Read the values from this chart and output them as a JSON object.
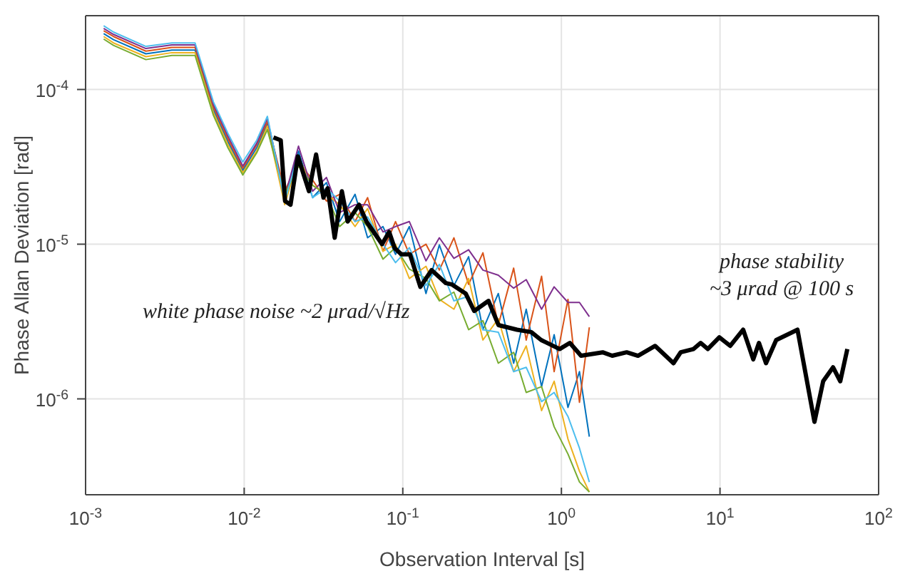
{
  "chart_data": {
    "type": "line",
    "xlabel": "Observation Interval [s]",
    "ylabel": "Phase Allan Deviation [rad]",
    "log": "xy",
    "grid": true,
    "marker": "none",
    "line_style": "solid",
    "xlim": [
      0.001,
      100
    ],
    "ylim": [
      2.4e-07,
      0.0003
    ],
    "xticks": [
      {
        "value": 0.001,
        "label": "10$^{-3}$"
      },
      {
        "value": 0.01,
        "label": "10$^{-2}$"
      },
      {
        "value": 0.1,
        "label": "10$^{-1}$"
      },
      {
        "value": 1,
        "label": "10$^{0}$"
      },
      {
        "value": 10,
        "label": "10$^{1}$"
      },
      {
        "value": 100,
        "label": "10$^{2}$"
      }
    ],
    "yticks": [
      {
        "value": 1e-06,
        "label": "10$^{-6}$"
      },
      {
        "value": 1e-05,
        "label": "10$^{-5}$"
      },
      {
        "value": 0.0001,
        "label": "10$^{-4}$"
      }
    ],
    "x": [
      0.0013,
      0.0015,
      0.0024,
      0.0035,
      0.0049,
      0.0064,
      0.0079,
      0.0098,
      0.012,
      0.014,
      0.018,
      0.022,
      0.027,
      0.033,
      0.04,
      0.05,
      0.06,
      0.075,
      0.09,
      0.11,
      0.14,
      0.17,
      0.21,
      0.26,
      0.32,
      0.4,
      0.5,
      0.6,
      0.75,
      0.9,
      1.1,
      1.3,
      1.5
    ],
    "series": [
      {
        "color": "#0072bd",
        "values": [
          0.00023,
          0.00021,
          0.00017,
          0.00018,
          0.00018,
          7.4e-05,
          4.6e-05,
          3e-05,
          4.2e-05,
          6e-05,
          2e-05,
          4e-05,
          2e-05,
          2.5e-05,
          1.4e-05,
          2.1e-05,
          1.1e-05,
          1.3e-05,
          8.6e-06,
          1.3e-05,
          4.8e-06,
          9.9e-06,
          5.4e-06,
          8.3e-06,
          2.8e-06,
          4.8e-06,
          1.7e-06,
          3.8e-06,
          1.2e-06,
          2.6e-06,
          8.8e-07,
          1.5e-06,
          5.7e-07
        ]
      },
      {
        "color": "#d95319",
        "values": [
          0.00024,
          0.00022,
          0.000177,
          0.000187,
          0.000187,
          7.7e-05,
          4.8e-05,
          3.1e-05,
          4.4e-05,
          6.2e-05,
          2.2e-05,
          3.4e-05,
          2.6e-05,
          1.9e-05,
          2.1e-05,
          1.4e-05,
          2e-05,
          9e-06,
          1.4e-05,
          8.6e-06,
          1e-05,
          6.8e-06,
          1.1e-05,
          5.5e-06,
          8.8e-06,
          3e-06,
          7e-06,
          2.4e-06,
          6.2e-06,
          1.5e-06,
          4.4e-06,
          9.5e-07,
          2.9e-06
        ]
      },
      {
        "color": "#edb120",
        "values": [
          0.00022,
          0.0002,
          0.000163,
          0.000173,
          0.000173,
          7.1e-05,
          4.4e-05,
          2.9e-05,
          4e-05,
          5.8e-05,
          1.8e-05,
          3.6e-05,
          2.4e-05,
          2.1e-05,
          1.8e-05,
          1.3e-05,
          1.7e-05,
          9e-06,
          1e-05,
          6e-06,
          7.2e-06,
          4.4e-06,
          3.8e-06,
          6e-06,
          2.4e-06,
          3.3e-06,
          1.5e-06,
          2.2e-06,
          8.4e-07,
          1.3e-06,
          5.5e-07,
          3.4e-07,
          2.5e-07
        ]
      },
      {
        "color": "#7e2f8e",
        "values": [
          0.000248,
          0.000227,
          0.000184,
          0.000194,
          0.000194,
          8e-05,
          5e-05,
          3.2e-05,
          4.5e-05,
          6.5e-05,
          2e-05,
          4.3e-05,
          2.2e-05,
          2.7e-05,
          1.6e-05,
          1.8e-05,
          1.8e-05,
          1.2e-05,
          1.3e-05,
          1.4e-05,
          7.8e-06,
          1.1e-05,
          8.1e-06,
          9.2e-06,
          6.8e-06,
          6.3e-06,
          5.2e-06,
          5.9e-06,
          3.8e-06,
          5.3e-06,
          4.2e-06,
          4.2e-06,
          3.4e-06
        ]
      },
      {
        "color": "#77ac30",
        "values": [
          0.000212,
          0.000193,
          0.000156,
          0.000166,
          0.000166,
          6.8e-05,
          4.2e-05,
          2.8e-05,
          3.9e-05,
          5.5e-05,
          2.1e-05,
          3.2e-05,
          2.4e-05,
          2.1e-05,
          1.3e-05,
          1.6e-05,
          1.3e-05,
          8e-06,
          9.5e-06,
          6.9e-06,
          6e-06,
          4.3e-06,
          4.9e-06,
          2.8e-06,
          3.2e-06,
          1.7e-06,
          2e-06,
          1.1e-06,
          1.2e-06,
          6.6e-07,
          4.4e-07,
          2.9e-07,
          2.5e-07
        ]
      },
      {
        "color": "#4dbeee",
        "values": [
          0.000258,
          0.000235,
          0.00019,
          0.0002,
          0.0002,
          8.3e-05,
          5.2e-05,
          3.4e-05,
          4.7e-05,
          6.7e-05,
          1.9e-05,
          3.8e-05,
          2e-05,
          2.3e-05,
          1.9e-05,
          1.4e-05,
          1.5e-05,
          1e-05,
          7.6e-06,
          9.5e-06,
          5.4e-06,
          7.4e-06,
          4.3e-06,
          4.6e-06,
          2.8e-06,
          2.7e-06,
          1.5e-06,
          1.6e-06,
          9.6e-07,
          1.1e-06,
          7.7e-07,
          4.8e-07,
          2.9e-07
        ]
      },
      {
        "color": "#000000",
        "x": [
          0.0153,
          0.017,
          0.0181,
          0.0196,
          0.0218,
          0.0256,
          0.0284,
          0.0316,
          0.0336,
          0.0372,
          0.0413,
          0.0449,
          0.053,
          0.059,
          0.074,
          0.082,
          0.089,
          0.098,
          0.111,
          0.129,
          0.152,
          0.187,
          0.203,
          0.249,
          0.282,
          0.347,
          0.401,
          0.525,
          0.646,
          0.746,
          0.975,
          1.13,
          1.33,
          1.82,
          2.09,
          2.58,
          3.04,
          3.9,
          5.09,
          5.65,
          6.81,
          7.55,
          8.37,
          9.9,
          11.6,
          14.0,
          16.2,
          17.6,
          19.5,
          22.6,
          30.8,
          39.4,
          44.7,
          51.6,
          57.3,
          63.5
        ],
        "values": [
          4.9e-05,
          4.7e-05,
          1.9e-05,
          1.8e-05,
          3.7e-05,
          2.2e-05,
          3.8e-05,
          2e-05,
          2.3e-05,
          1.1e-05,
          2.2e-05,
          1.4e-05,
          1.8e-05,
          1.4e-05,
          1e-05,
          1.2e-05,
          9.4e-06,
          8.6e-06,
          8.6e-06,
          5.3e-06,
          6.8e-06,
          5.6e-06,
          5.5e-06,
          4.8e-06,
          3.7e-06,
          4.3e-06,
          3e-06,
          2.8e-06,
          2.7e-06,
          2.4e-06,
          2.1e-06,
          2.3e-06,
          1.9e-06,
          2e-06,
          1.9e-06,
          2e-06,
          1.9e-06,
          2.2e-06,
          1.7e-06,
          2e-06,
          2.1e-06,
          2.3e-06,
          2.1e-06,
          2.5e-06,
          2.2e-06,
          2.8e-06,
          1.8e-06,
          2.3e-06,
          1.7e-06,
          2.4e-06,
          2.8e-06,
          7.1e-07,
          1.3e-06,
          1.6e-06,
          1.3e-06,
          2.1e-06
        ]
      }
    ],
    "annotations": [
      "white phase noise ~2 μrad/√Hz",
      "phase stability\n~3 μrad @ 100 s"
    ]
  }
}
